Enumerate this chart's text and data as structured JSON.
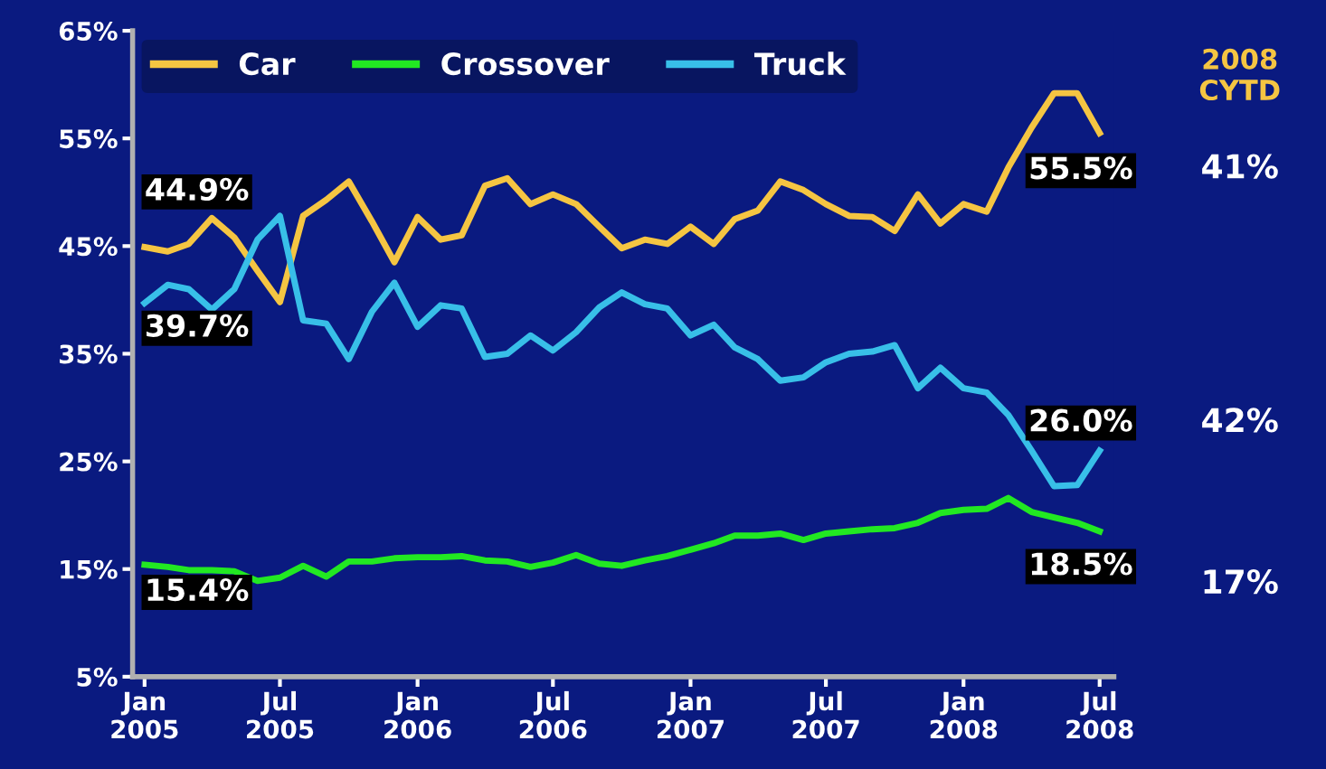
{
  "chart_data": {
    "type": "line",
    "x": [
      "2005-01",
      "2005-02",
      "2005-03",
      "2005-04",
      "2005-05",
      "2005-06",
      "2005-07",
      "2005-08",
      "2005-09",
      "2005-10",
      "2005-11",
      "2005-12",
      "2006-01",
      "2006-02",
      "2006-03",
      "2006-04",
      "2006-05",
      "2006-06",
      "2006-07",
      "2006-08",
      "2006-09",
      "2006-10",
      "2006-11",
      "2006-12",
      "2007-01",
      "2007-02",
      "2007-03",
      "2007-04",
      "2007-05",
      "2007-06",
      "2007-07",
      "2007-08",
      "2007-09",
      "2007-10",
      "2007-11",
      "2007-12",
      "2008-01",
      "2008-02",
      "2008-03",
      "2008-04",
      "2008-05",
      "2008-06",
      "2008-07"
    ],
    "series": [
      {
        "name": "Car",
        "color": "#f5c542",
        "values": [
          44.9,
          44.5,
          45.2,
          47.6,
          45.8,
          42.7,
          39.8,
          47.8,
          49.3,
          51,
          47.3,
          43.5,
          47.7,
          45.6,
          46,
          50.6,
          51.3,
          48.9,
          49.8,
          48.9,
          46.8,
          44.8,
          45.6,
          45.2,
          46.8,
          45.2,
          47.5,
          48.3,
          51,
          50.2,
          48.9,
          47.8,
          47.7,
          46.4,
          49.8,
          47.1,
          48.9,
          48.2,
          52.3,
          56,
          59.2,
          59.2,
          55.5
        ],
        "value_labels": [
          "44.9%",
          null,
          null,
          null,
          null,
          null,
          null,
          null,
          null,
          null,
          null,
          null,
          null,
          null,
          null,
          null,
          null,
          null,
          null,
          null,
          null,
          null,
          null,
          null,
          null,
          null,
          null,
          null,
          null,
          null,
          null,
          null,
          null,
          null,
          null,
          null,
          null,
          null,
          null,
          null,
          null,
          null,
          "55.5%"
        ]
      },
      {
        "name": "Crossover",
        "color": "#22e822",
        "values": [
          15.4,
          15.2,
          14.9,
          14.9,
          14.8,
          13.9,
          14.2,
          15.3,
          14.3,
          15.7,
          15.7,
          16,
          16.1,
          16.1,
          16.2,
          15.8,
          15.7,
          15.2,
          15.6,
          16.3,
          15.5,
          15.3,
          15.8,
          16.2,
          16.8,
          17.4,
          18.1,
          18.1,
          18.3,
          17.7,
          18.3,
          18.5,
          18.7,
          18.8,
          19.3,
          20.2,
          20.5,
          20.6,
          21.6,
          20.3,
          19.8,
          19.3,
          18.5
        ],
        "value_labels": [
          "15.4%",
          null,
          null,
          null,
          null,
          null,
          null,
          null,
          null,
          null,
          null,
          null,
          null,
          null,
          null,
          null,
          null,
          null,
          null,
          null,
          null,
          null,
          null,
          null,
          null,
          null,
          null,
          null,
          null,
          null,
          null,
          null,
          null,
          null,
          null,
          null,
          null,
          null,
          null,
          null,
          null,
          null,
          "18.5%"
        ]
      },
      {
        "name": "Truck",
        "color": "#38bfe8",
        "values": [
          39.7,
          41.4,
          41,
          39.1,
          41,
          45.6,
          47.8,
          38.1,
          37.8,
          34.5,
          38.9,
          41.6,
          37.5,
          39.5,
          39.2,
          34.7,
          35,
          36.7,
          35.3,
          37,
          39.3,
          40.7,
          39.6,
          39.2,
          36.7,
          37.7,
          35.6,
          34.5,
          32.5,
          32.8,
          34.2,
          35,
          35.2,
          35.8,
          31.8,
          33.7,
          31.8,
          31.4,
          29.3,
          26,
          22.7,
          22.8,
          26.0
        ],
        "value_labels": [
          "39.7%",
          null,
          null,
          null,
          null,
          null,
          null,
          null,
          null,
          null,
          null,
          null,
          null,
          null,
          null,
          null,
          null,
          null,
          null,
          null,
          null,
          null,
          null,
          null,
          null,
          null,
          null,
          null,
          null,
          null,
          null,
          null,
          null,
          null,
          null,
          null,
          null,
          null,
          null,
          null,
          null,
          null,
          "26.0%"
        ]
      }
    ],
    "xlim": [
      "2004-12-16",
      "2008-07-20"
    ],
    "xticks": [
      {
        "value": "2005-01",
        "label": "Jan\n2005"
      },
      {
        "value": "2005-07",
        "label": "Jul\n2005"
      },
      {
        "value": "2006-01",
        "label": "Jan\n2006"
      },
      {
        "value": "2006-07",
        "label": "Jul\n2006"
      },
      {
        "value": "2007-01",
        "label": "Jan\n2007"
      },
      {
        "value": "2007-07",
        "label": "Jul\n2007"
      },
      {
        "value": "2008-01",
        "label": "Jan\n2008"
      },
      {
        "value": "2008-07",
        "label": "Jul\n2008"
      }
    ],
    "ylim": [
      5,
      65
    ],
    "yticks": [
      {
        "value": 5,
        "label": "5%"
      },
      {
        "value": 15,
        "label": "15%"
      },
      {
        "value": 25,
        "label": "25%"
      },
      {
        "value": 35,
        "label": "35%"
      },
      {
        "value": 45,
        "label": "45%"
      },
      {
        "value": 55,
        "label": "55%"
      },
      {
        "value": 65,
        "label": "65%"
      }
    ],
    "annotations": [
      "2008\nCYTD",
      "41%",
      "42%",
      "17%"
    ],
    "legend": "top left",
    "grid": false,
    "marker": "none",
    "line_style": "solid"
  }
}
